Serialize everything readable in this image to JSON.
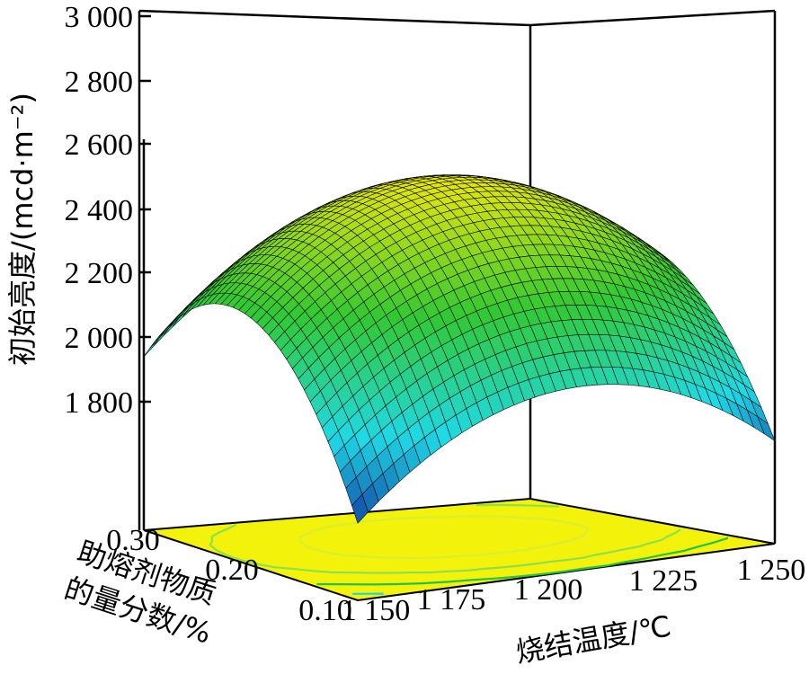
{
  "chart_data": {
    "type": "surface3d",
    "z_axis": {
      "label": "初始亮度/(mcd·m⁻²)",
      "ticks": [
        "3 000",
        "2 800",
        "2 600",
        "2 400",
        "2 200",
        "2 000",
        "1 800"
      ],
      "range": [
        1600,
        3000
      ]
    },
    "x_axis": {
      "label": "烧结温度/℃",
      "ticks": [
        "1 150",
        "1 175",
        "1 200",
        "1 225",
        "1 250"
      ],
      "range": [
        1150,
        1250
      ]
    },
    "y_axis": {
      "label_line1": "助熔剂物质",
      "label_line2": "的量分数/%",
      "ticks": [
        "0.30",
        "0.20",
        "0.10"
      ],
      "range": [
        0.1,
        0.3
      ]
    },
    "surface_points": [
      {
        "temperature": 1150,
        "flux": 0.1,
        "brightness": 1780
      },
      {
        "temperature": 1150,
        "flux": 0.3,
        "brightness": 2060
      },
      {
        "temperature": 1250,
        "flux": 0.1,
        "brightness": 1830
      },
      {
        "temperature": 1250,
        "flux": 0.3,
        "brightness": 2190
      },
      {
        "temperature": 1200,
        "flux": 0.2,
        "brightness": 2700
      }
    ],
    "contour_projection": true,
    "colormap": [
      "#0a0a8a",
      "#1fd9e6",
      "#32c832",
      "#e6e60a"
    ]
  }
}
